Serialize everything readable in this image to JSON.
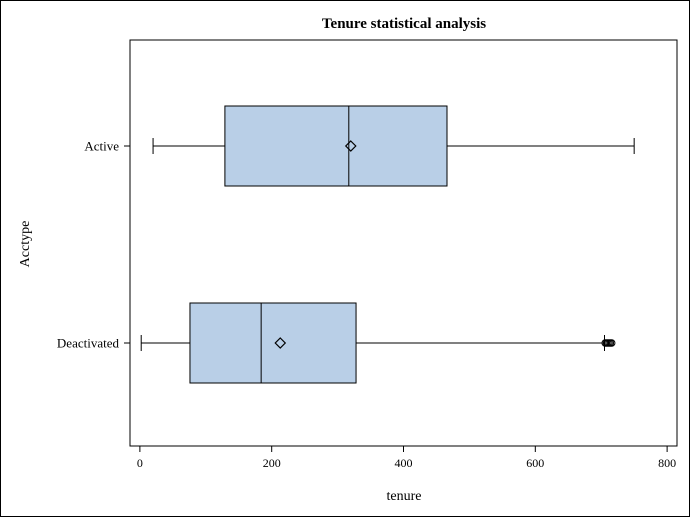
{
  "chart_data": {
    "type": "boxplot",
    "orientation": "horizontal",
    "title": "Tenure statistical analysis",
    "xlabel": "tenure",
    "ylabel": "Acctype",
    "xlim": [
      -15,
      815
    ],
    "xticks": [
      0,
      200,
      400,
      600,
      800
    ],
    "categories": [
      "Active",
      "Deactivated"
    ],
    "series": [
      {
        "name": "Active",
        "whisker_low": 20,
        "q1": 129,
        "median": 317,
        "q3": 466,
        "whisker_high": 750,
        "mean": 320,
        "outliers": []
      },
      {
        "name": "Deactivated",
        "whisker_low": 2,
        "q1": 76,
        "median": 184,
        "q3": 328,
        "whisker_high": 705,
        "mean": 213,
        "outliers": [
          706,
          708,
          710,
          712,
          714,
          716
        ]
      }
    ],
    "colors": {
      "box_fill": "#b9cfe7",
      "stroke": "#000000"
    },
    "grid": false,
    "legend": "none"
  }
}
